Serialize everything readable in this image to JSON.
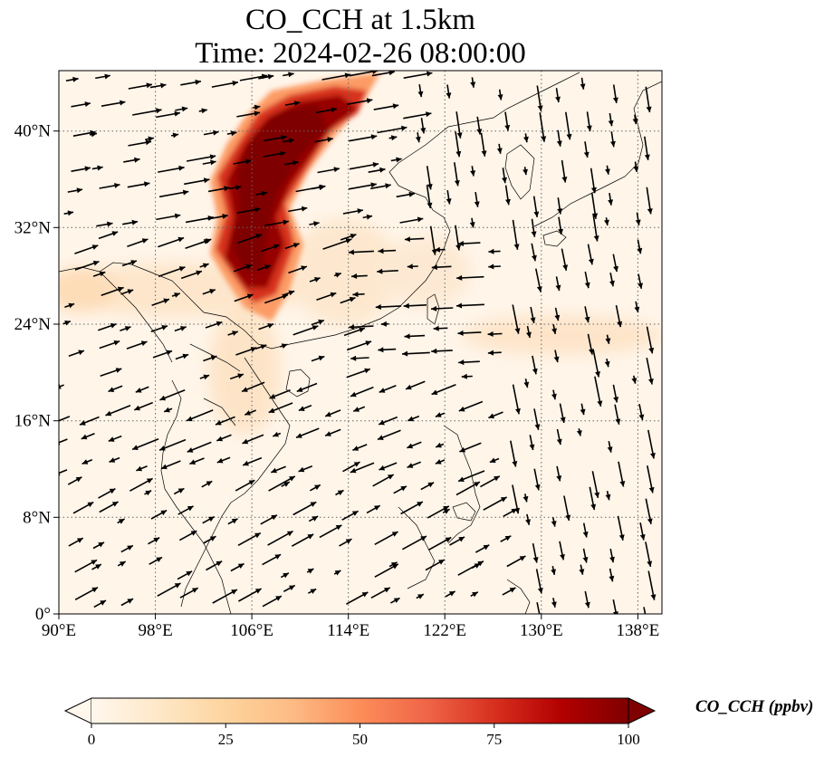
{
  "title": {
    "line1": "CO_CCH at 1.5km",
    "line2": "Time: 2024-02-26 08:00:00"
  },
  "map": {
    "lon_range": [
      90,
      140
    ],
    "lat_range": [
      0,
      45
    ],
    "x_ticks": [
      "90°E",
      "98°E",
      "106°E",
      "114°E",
      "122°E",
      "130°E",
      "138°E"
    ],
    "y_ticks": [
      "0°",
      "8°N",
      "16°N",
      "24°N",
      "32°N",
      "40°N"
    ],
    "gridlines": true,
    "field": "CO_CCH",
    "wind_vectors": true
  },
  "colorbar": {
    "label": "CO_CCH (ppbv)",
    "ticks": [
      "0",
      "25",
      "50",
      "75",
      "100"
    ],
    "vmin": 0,
    "vmax": 100,
    "colormap": [
      "#fff7ec",
      "#fee8c8",
      "#fdd49e",
      "#fdbb84",
      "#fc8d59",
      "#ef6548",
      "#d7301f",
      "#b30000",
      "#7f0000"
    ],
    "extend": "both"
  }
}
